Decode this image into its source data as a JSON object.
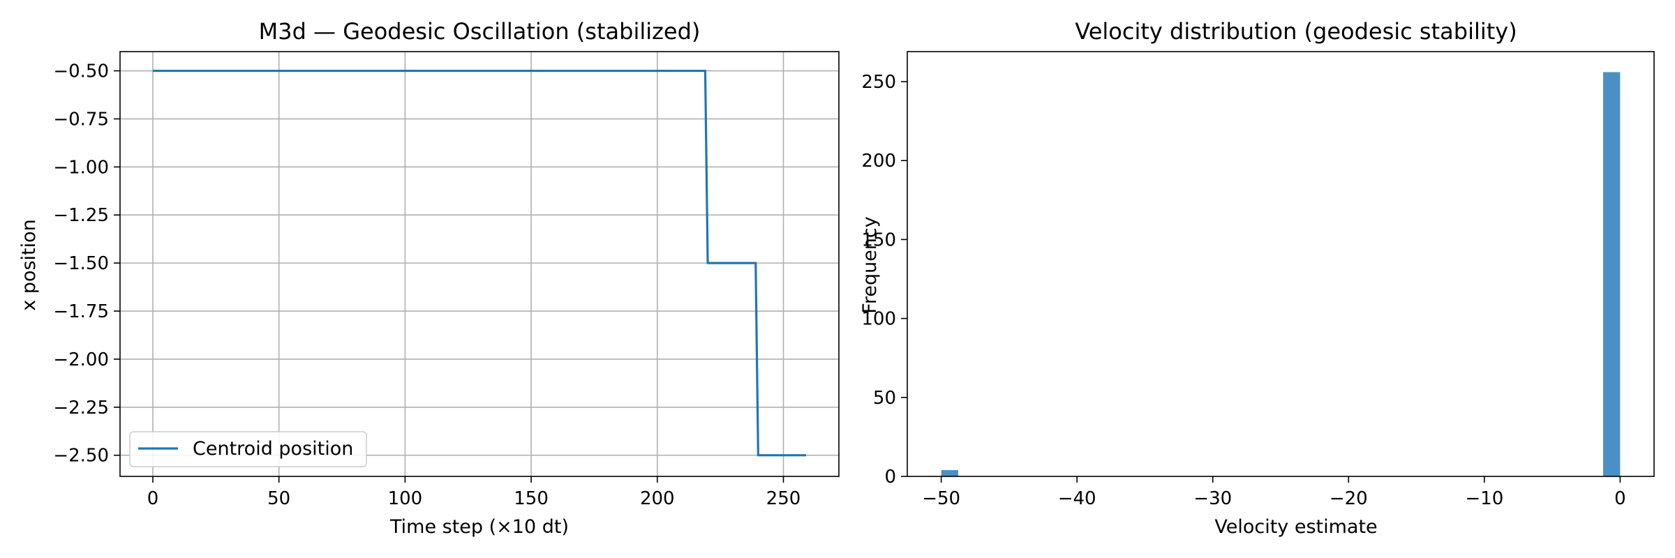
{
  "colors": {
    "line": "#1f77b4",
    "bar": "#4a90c4",
    "grid": "#b0b0b0",
    "axis": "#000000"
  },
  "chart_data": [
    {
      "type": "line",
      "title": "M3d — Geodesic Oscillation (stabilized)",
      "xlabel": "Time step (×10 dt)",
      "ylabel": "x position",
      "xlim": [
        -13,
        272
      ],
      "ylim": [
        -2.61,
        -0.4
      ],
      "xticks": [
        0,
        50,
        100,
        150,
        200,
        250
      ],
      "yticks": [
        -0.5,
        -0.75,
        -1.0,
        -1.25,
        -1.5,
        -1.75,
        -2.0,
        -2.25,
        -2.5
      ],
      "ytick_labels": [
        "−0.50",
        "−0.75",
        "−1.00",
        "−1.25",
        "−1.50",
        "−1.75",
        "−2.00",
        "−2.25",
        "−2.50"
      ],
      "xtick_labels": [
        "0",
        "50",
        "100",
        "150",
        "200",
        "250"
      ],
      "grid": true,
      "legend": "lower-left",
      "series": [
        {
          "name": "Centroid position",
          "x": [
            0,
            219,
            220,
            239,
            240,
            259
          ],
          "y": [
            -0.5,
            -0.5,
            -1.5,
            -1.5,
            -2.5,
            -2.5
          ]
        }
      ]
    },
    {
      "type": "bar",
      "title": "Velocity distribution (geodesic stability)",
      "xlabel": "Velocity estimate",
      "ylabel": "Frequency",
      "xlim": [
        -52.5,
        2.5
      ],
      "ylim": [
        0,
        269
      ],
      "xticks": [
        -50,
        -40,
        -30,
        -20,
        -10,
        0
      ],
      "xtick_labels": [
        "−50",
        "−40",
        "−30",
        "−20",
        "−10",
        "0"
      ],
      "yticks": [
        0,
        50,
        100,
        150,
        200,
        250
      ],
      "ytick_labels": [
        "0",
        "50",
        "100",
        "150",
        "200",
        "250"
      ],
      "grid": false,
      "bins": [
        {
          "left": -50.0,
          "right": -48.75,
          "count": 4
        },
        {
          "left": -1.25,
          "right": 0.0,
          "count": 256
        }
      ]
    }
  ]
}
